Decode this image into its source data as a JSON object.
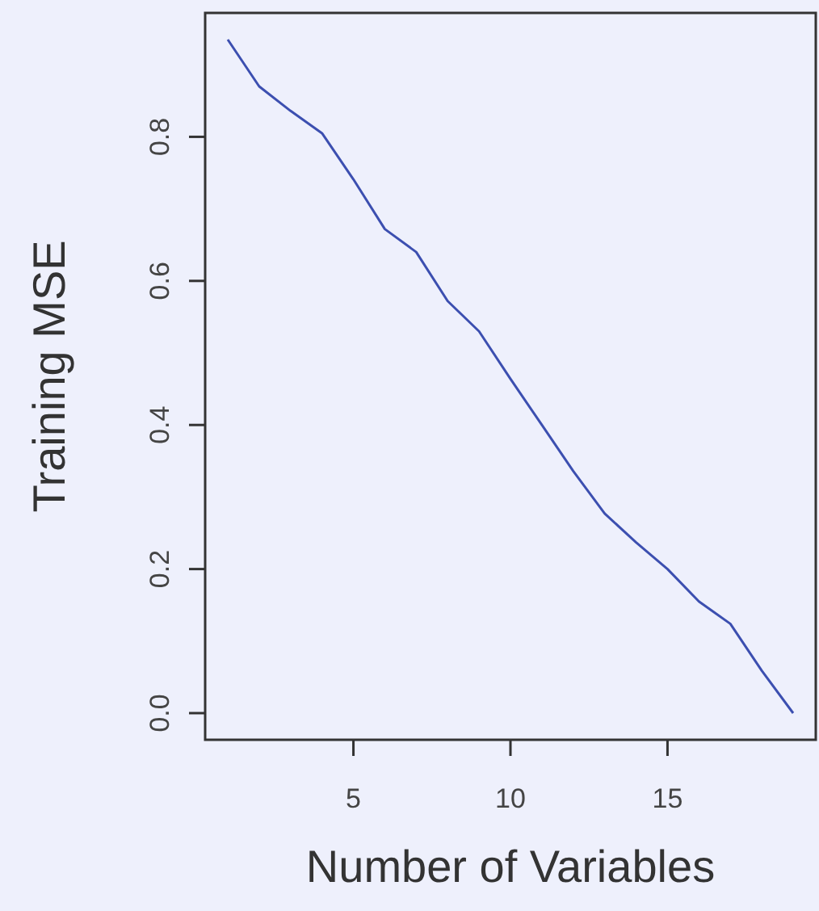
{
  "chart_data": {
    "type": "line",
    "xlabel": "Number of Variables",
    "ylabel": "Training MSE",
    "x": [
      1,
      2,
      3,
      4,
      5,
      6,
      7,
      8,
      9,
      10,
      11,
      12,
      13,
      14,
      15,
      16,
      17,
      18,
      19
    ],
    "series": [
      {
        "color": "#3c4fb0",
        "values": [
          0.935,
          0.87,
          0.836,
          0.805,
          0.741,
          0.672,
          0.64,
          0.572,
          0.53,
          0.464,
          0.4,
          0.336,
          0.277,
          0.237,
          0.2,
          0.155,
          0.124,
          0.059,
          0.0
        ]
      }
    ],
    "xlim": [
      0.28,
      19.72
    ],
    "ylim": [
      -0.037,
      0.972
    ],
    "xticks": [
      5,
      10,
      15
    ],
    "yticks": [
      {
        "value": 0,
        "label": "0.0"
      },
      0.2,
      0.4,
      0.6,
      0.8
    ],
    "grid": false,
    "marker": "none",
    "line_style": "solid"
  }
}
